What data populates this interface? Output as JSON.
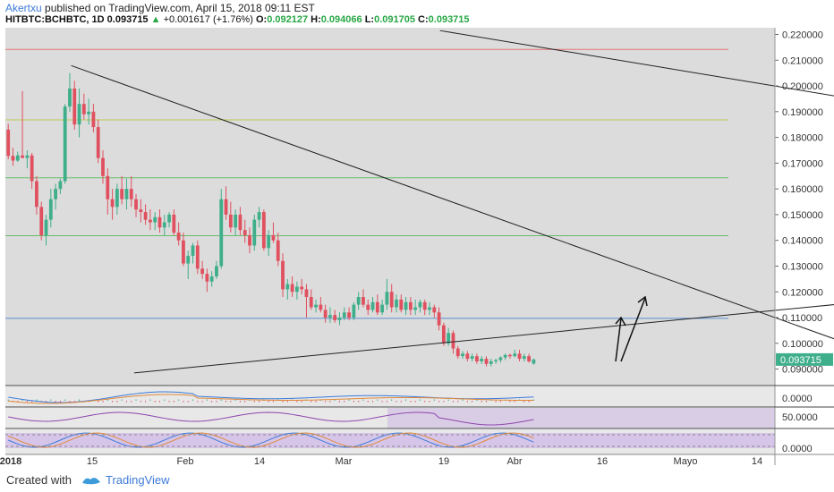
{
  "header": {
    "author": "Akertxu",
    "published": "published on TradingView.com, April 15, 2018 09:11 EST",
    "symbol": "HITBTC:BCHBTC, 1D",
    "last": "0.093715",
    "change": "+0.001617 (+1.76%)",
    "open_label": "O:",
    "open": "0.092127",
    "high_label": "H:",
    "high": "0.094066",
    "low_label": "L:",
    "low": "0.091705",
    "close_label": "C:",
    "close": "0.093715"
  },
  "footer": {
    "created": "Created with",
    "brand": "TradingView"
  },
  "colors": {
    "up": "#3fae8a",
    "down": "#e0505f",
    "panel_bg": "#dcdcdc",
    "hline_red": "#e57373",
    "hline_olive": "#c0c850",
    "hline_green": "#66bb6a",
    "hline_blue": "#5b8fd0"
  },
  "chart_data": {
    "type": "candlestick",
    "price_axis": {
      "ticks": [
        "0.220000",
        "0.210000",
        "0.200000",
        "0.190000",
        "0.180000",
        "0.170000",
        "0.160000",
        "0.150000",
        "0.140000",
        "0.130000",
        "0.120000",
        "0.110000",
        "0.100000",
        "0.090000"
      ],
      "range": [
        0.0885,
        0.2215
      ],
      "last_price_label": "0.093715"
    },
    "x_ticks": [
      "2018",
      "15",
      "Feb",
      "14",
      "Mar",
      "19",
      "Abr",
      "16",
      "Mayo",
      "14"
    ],
    "horizontal_levels": [
      {
        "price": 0.2142,
        "color": "#e57373"
      },
      {
        "price": 0.1868,
        "color": "#c0c850"
      },
      {
        "price": 0.1643,
        "color": "#66bb6a"
      },
      {
        "price": 0.1418,
        "color": "#66bb6a"
      },
      {
        "price": 0.1097,
        "color": "#5b8fd0"
      }
    ],
    "trendlines_days": [
      {
        "from": [
          13.3,
          0.2079
        ],
        "to": [
          194.6,
          0.0885
        ]
      },
      {
        "from": [
          91.2,
          0.2215
        ],
        "to": [
          235.1,
          0.1777
        ]
      },
      {
        "from": [
          26.6,
          0.0885
        ],
        "to": [
          235.6,
          0.126
        ]
      }
    ],
    "candles": [
      [
        0.183,
        0.1853,
        0.1715,
        0.1728
      ],
      [
        0.1728,
        0.176,
        0.169,
        0.171
      ],
      [
        0.171,
        0.1745,
        0.1705,
        0.173
      ],
      [
        0.173,
        0.198,
        0.172,
        0.172
      ],
      [
        0.172,
        0.175,
        0.168,
        0.173
      ],
      [
        0.173,
        0.174,
        0.16,
        0.163
      ],
      [
        0.163,
        0.165,
        0.15,
        0.153
      ],
      [
        0.153,
        0.155,
        0.14,
        0.142
      ],
      [
        0.142,
        0.15,
        0.138,
        0.148
      ],
      [
        0.148,
        0.16,
        0.145,
        0.156
      ],
      [
        0.156,
        0.162,
        0.152,
        0.16
      ],
      [
        0.16,
        0.164,
        0.158,
        0.163
      ],
      [
        0.163,
        0.193,
        0.162,
        0.192
      ],
      [
        0.192,
        0.205,
        0.19,
        0.199
      ],
      [
        0.199,
        0.202,
        0.183,
        0.185
      ],
      [
        0.185,
        0.199,
        0.18,
        0.193
      ],
      [
        0.193,
        0.197,
        0.187,
        0.189
      ],
      [
        0.189,
        0.195,
        0.185,
        0.19
      ],
      [
        0.19,
        0.193,
        0.182,
        0.184
      ],
      [
        0.184,
        0.187,
        0.17,
        0.172
      ],
      [
        0.172,
        0.175,
        0.162,
        0.165
      ],
      [
        0.165,
        0.168,
        0.15,
        0.156
      ],
      [
        0.156,
        0.16,
        0.148,
        0.153
      ],
      [
        0.153,
        0.162,
        0.15,
        0.16
      ],
      [
        0.16,
        0.165,
        0.154,
        0.156
      ],
      [
        0.156,
        0.164,
        0.152,
        0.16
      ],
      [
        0.16,
        0.165,
        0.153,
        0.156
      ],
      [
        0.156,
        0.158,
        0.149,
        0.152
      ],
      [
        0.152,
        0.156,
        0.147,
        0.151
      ],
      [
        0.151,
        0.154,
        0.146,
        0.148
      ],
      [
        0.148,
        0.152,
        0.144,
        0.147
      ],
      [
        0.147,
        0.151,
        0.144,
        0.149
      ],
      [
        0.149,
        0.152,
        0.143,
        0.145
      ],
      [
        0.145,
        0.15,
        0.142,
        0.147
      ],
      [
        0.147,
        0.151,
        0.145,
        0.15
      ],
      [
        0.15,
        0.152,
        0.142,
        0.143
      ],
      [
        0.143,
        0.147,
        0.138,
        0.14
      ],
      [
        0.14,
        0.143,
        0.13,
        0.131
      ],
      [
        0.131,
        0.136,
        0.125,
        0.134
      ],
      [
        0.134,
        0.139,
        0.131,
        0.138
      ],
      [
        0.138,
        0.14,
        0.127,
        0.129
      ],
      [
        0.129,
        0.132,
        0.125,
        0.127
      ],
      [
        0.127,
        0.129,
        0.12,
        0.124
      ],
      [
        0.124,
        0.128,
        0.122,
        0.126
      ],
      [
        0.126,
        0.132,
        0.125,
        0.13
      ],
      [
        0.13,
        0.16,
        0.129,
        0.156
      ],
      [
        0.156,
        0.161,
        0.148,
        0.15
      ],
      [
        0.15,
        0.155,
        0.143,
        0.145
      ],
      [
        0.145,
        0.152,
        0.142,
        0.15
      ],
      [
        0.15,
        0.153,
        0.142,
        0.144
      ],
      [
        0.144,
        0.148,
        0.139,
        0.142
      ],
      [
        0.142,
        0.145,
        0.135,
        0.138
      ],
      [
        0.138,
        0.15,
        0.136,
        0.148
      ],
      [
        0.148,
        0.153,
        0.145,
        0.151
      ],
      [
        0.151,
        0.152,
        0.136,
        0.137
      ],
      [
        0.137,
        0.144,
        0.134,
        0.142
      ],
      [
        0.142,
        0.147,
        0.139,
        0.14
      ],
      [
        0.14,
        0.143,
        0.13,
        0.132
      ],
      [
        0.132,
        0.135,
        0.118,
        0.121
      ],
      [
        0.121,
        0.125,
        0.117,
        0.123
      ],
      [
        0.123,
        0.126,
        0.118,
        0.12
      ],
      [
        0.12,
        0.124,
        0.117,
        0.122
      ],
      [
        0.122,
        0.125,
        0.119,
        0.121
      ],
      [
        0.121,
        0.123,
        0.11,
        0.118
      ],
      [
        0.118,
        0.121,
        0.113,
        0.114
      ],
      [
        0.114,
        0.117,
        0.112,
        0.115
      ],
      [
        0.115,
        0.118,
        0.112,
        0.113
      ],
      [
        0.113,
        0.115,
        0.108,
        0.11
      ],
      [
        0.11,
        0.114,
        0.108,
        0.111
      ],
      [
        0.111,
        0.113,
        0.108,
        0.109
      ],
      [
        0.109,
        0.112,
        0.107,
        0.11
      ],
      [
        0.11,
        0.114,
        0.109,
        0.112
      ],
      [
        0.112,
        0.114,
        0.109,
        0.11
      ],
      [
        0.11,
        0.116,
        0.109,
        0.115
      ],
      [
        0.115,
        0.12,
        0.113,
        0.118
      ],
      [
        0.118,
        0.121,
        0.114,
        0.115
      ],
      [
        0.115,
        0.117,
        0.111,
        0.113
      ],
      [
        0.113,
        0.118,
        0.112,
        0.116
      ],
      [
        0.116,
        0.119,
        0.111,
        0.112
      ],
      [
        0.112,
        0.117,
        0.111,
        0.115
      ],
      [
        0.115,
        0.125,
        0.113,
        0.12
      ],
      [
        0.12,
        0.123,
        0.112,
        0.114
      ],
      [
        0.114,
        0.119,
        0.112,
        0.117
      ],
      [
        0.117,
        0.119,
        0.112,
        0.113
      ],
      [
        0.113,
        0.118,
        0.111,
        0.116
      ],
      [
        0.116,
        0.118,
        0.111,
        0.113
      ],
      [
        0.113,
        0.117,
        0.111,
        0.114
      ],
      [
        0.114,
        0.117,
        0.112,
        0.116
      ],
      [
        0.116,
        0.117,
        0.111,
        0.113
      ],
      [
        0.113,
        0.116,
        0.111,
        0.114
      ],
      [
        0.114,
        0.115,
        0.11,
        0.112
      ],
      [
        0.112,
        0.114,
        0.105,
        0.107
      ],
      [
        0.107,
        0.108,
        0.099,
        0.1
      ],
      [
        0.1,
        0.106,
        0.099,
        0.104
      ],
      [
        0.104,
        0.105,
        0.096,
        0.098
      ],
      [
        0.098,
        0.099,
        0.094,
        0.095
      ],
      [
        0.095,
        0.097,
        0.094,
        0.096
      ],
      [
        0.096,
        0.097,
        0.093,
        0.094
      ],
      [
        0.094,
        0.096,
        0.093,
        0.095
      ],
      [
        0.095,
        0.096,
        0.092,
        0.093
      ],
      [
        0.093,
        0.095,
        0.092,
        0.094
      ],
      [
        0.094,
        0.095,
        0.091,
        0.092
      ],
      [
        0.092,
        0.094,
        0.091,
        0.093
      ],
      [
        0.093,
        0.094,
        0.092,
        0.0935
      ],
      [
        0.0935,
        0.095,
        0.0925,
        0.0945
      ],
      [
        0.0945,
        0.096,
        0.0935,
        0.0955
      ],
      [
        0.0955,
        0.096,
        0.094,
        0.095
      ],
      [
        0.095,
        0.0975,
        0.0945,
        0.096
      ],
      [
        0.096,
        0.0975,
        0.093,
        0.094
      ],
      [
        0.094,
        0.096,
        0.093,
        0.095
      ],
      [
        0.095,
        0.096,
        0.0925,
        0.093
      ],
      [
        0.092127,
        0.094066,
        0.091705,
        0.093715
      ]
    ],
    "indicators": {
      "panel1_label": "0.0000",
      "panel2_label": "50.0000",
      "panel3_label": "0.0000"
    }
  }
}
